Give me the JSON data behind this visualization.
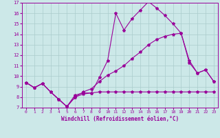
{
  "xlabel": "Windchill (Refroidissement éolien,°C)",
  "background_color": "#cce8e8",
  "line_color": "#990099",
  "grid_color": "#aacccc",
  "xlim": [
    -0.5,
    23.5
  ],
  "ylim": [
    7,
    17
  ],
  "xticks": [
    0,
    1,
    2,
    3,
    4,
    5,
    6,
    7,
    8,
    9,
    10,
    11,
    12,
    13,
    14,
    15,
    16,
    17,
    18,
    19,
    20,
    21,
    22,
    23
  ],
  "yticks": [
    7,
    8,
    9,
    10,
    11,
    12,
    13,
    14,
    15,
    16,
    17
  ],
  "line1_x": [
    0,
    1,
    2,
    3,
    4,
    5,
    6,
    7,
    8,
    9,
    10,
    11,
    12,
    13,
    14,
    15,
    16,
    17,
    18,
    19,
    20,
    21,
    22,
    23
  ],
  "line1_y": [
    9.4,
    8.9,
    9.3,
    8.5,
    7.8,
    7.1,
    8.0,
    8.3,
    8.4,
    9.9,
    11.5,
    16.0,
    14.4,
    15.5,
    16.3,
    17.1,
    16.5,
    15.8,
    15.0,
    14.1,
    11.5,
    10.3,
    10.6,
    9.5
  ],
  "line2_x": [
    0,
    1,
    2,
    3,
    4,
    5,
    6,
    7,
    8,
    9,
    10,
    11,
    12,
    13,
    14,
    15,
    16,
    17,
    18,
    19,
    20,
    21,
    22,
    23
  ],
  "line2_y": [
    9.4,
    8.9,
    9.3,
    8.5,
    7.8,
    7.1,
    8.0,
    8.5,
    8.8,
    9.5,
    10.1,
    10.5,
    11.0,
    11.7,
    12.3,
    13.0,
    13.5,
    13.8,
    14.0,
    14.1,
    11.3,
    10.3,
    10.6,
    9.5
  ],
  "line3_x": [
    0,
    1,
    2,
    3,
    4,
    5,
    6,
    7,
    8,
    9,
    10,
    11,
    12,
    13,
    14,
    15,
    16,
    17,
    18,
    19,
    20,
    21,
    22,
    23
  ],
  "line3_y": [
    9.4,
    8.9,
    9.3,
    8.5,
    7.8,
    7.1,
    8.2,
    8.4,
    8.4,
    8.5,
    8.5,
    8.5,
    8.5,
    8.5,
    8.5,
    8.5,
    8.5,
    8.5,
    8.5,
    8.5,
    8.5,
    8.5,
    8.5,
    8.5
  ]
}
